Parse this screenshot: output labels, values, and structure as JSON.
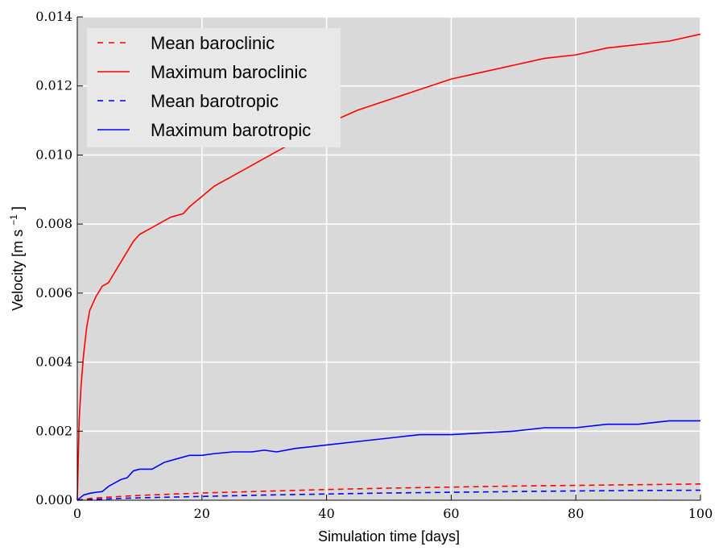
{
  "chart_data": {
    "type": "line",
    "xlabel": "Simulation time [days]",
    "ylabel_main": "Velocity [m s",
    "ylabel_sup": "−1",
    "ylabel_end": "]",
    "xlim": [
      0,
      100
    ],
    "ylim": [
      0,
      0.014
    ],
    "xticks": [
      0,
      20,
      40,
      60,
      80,
      100
    ],
    "xtick_labels": [
      "0",
      "20",
      "40",
      "60",
      "80",
      "100"
    ],
    "yticks": [
      0,
      0.002,
      0.004,
      0.006,
      0.008,
      0.01,
      0.012,
      0.014
    ],
    "ytick_labels": [
      "0.000",
      "0.002",
      "0.004",
      "0.006",
      "0.008",
      "0.010",
      "0.012",
      "0.014"
    ],
    "grid": true,
    "legend_position": "top-left",
    "series": [
      {
        "name": "Mean baroclinic",
        "color": "#ff0000",
        "style": "dashed",
        "x": [
          0,
          2,
          5,
          10,
          20,
          30,
          40,
          50,
          60,
          70,
          80,
          90,
          100
        ],
        "y": [
          0,
          5e-05,
          9e-05,
          0.00014,
          0.00021,
          0.00026,
          0.00031,
          0.00035,
          0.00038,
          0.00041,
          0.00043,
          0.00045,
          0.00047
        ]
      },
      {
        "name": "Maximum baroclinic",
        "color": "#ff0000",
        "style": "solid",
        "x": [
          0,
          0.3,
          0.6,
          1,
          1.5,
          2,
          3,
          4,
          5,
          6,
          7,
          8,
          9,
          10,
          12,
          14,
          15,
          17,
          18,
          20,
          22,
          25,
          28,
          30,
          35,
          40,
          45,
          50,
          55,
          60,
          65,
          70,
          75,
          80,
          85,
          90,
          95,
          100
        ],
        "y": [
          0,
          0.0023,
          0.0033,
          0.0042,
          0.005,
          0.0055,
          0.0059,
          0.0062,
          0.0063,
          0.0066,
          0.0069,
          0.0072,
          0.0075,
          0.0077,
          0.0079,
          0.0081,
          0.0082,
          0.0083,
          0.0085,
          0.0088,
          0.0091,
          0.0094,
          0.0097,
          0.0099,
          0.0104,
          0.0109,
          0.0113,
          0.0116,
          0.0119,
          0.0122,
          0.0124,
          0.0126,
          0.0128,
          0.0129,
          0.0131,
          0.0132,
          0.0133,
          0.0135
        ]
      },
      {
        "name": "Mean barotropic",
        "color": "#0000ff",
        "style": "dashed",
        "x": [
          0,
          2,
          5,
          10,
          20,
          30,
          40,
          50,
          60,
          70,
          80,
          90,
          100
        ],
        "y": [
          0,
          2e-05,
          4e-05,
          7e-05,
          0.00011,
          0.00015,
          0.00018,
          0.00021,
          0.00023,
          0.00025,
          0.00027,
          0.00028,
          0.00029
        ]
      },
      {
        "name": "Maximum barotropic",
        "color": "#0000ff",
        "style": "solid",
        "x": [
          0,
          1,
          2,
          3,
          4,
          5,
          6,
          7,
          8,
          9,
          10,
          12,
          14,
          16,
          18,
          20,
          22,
          25,
          28,
          30,
          32,
          35,
          40,
          45,
          50,
          55,
          60,
          65,
          70,
          75,
          80,
          85,
          90,
          95,
          100
        ],
        "y": [
          0,
          0.00015,
          0.0002,
          0.00023,
          0.00025,
          0.0004,
          0.0005,
          0.0006,
          0.00065,
          0.00085,
          0.0009,
          0.0009,
          0.0011,
          0.0012,
          0.0013,
          0.0013,
          0.00135,
          0.0014,
          0.0014,
          0.00145,
          0.0014,
          0.0015,
          0.0016,
          0.0017,
          0.0018,
          0.0019,
          0.0019,
          0.00195,
          0.002,
          0.0021,
          0.0021,
          0.0022,
          0.0022,
          0.0023,
          0.0023
        ]
      }
    ]
  }
}
